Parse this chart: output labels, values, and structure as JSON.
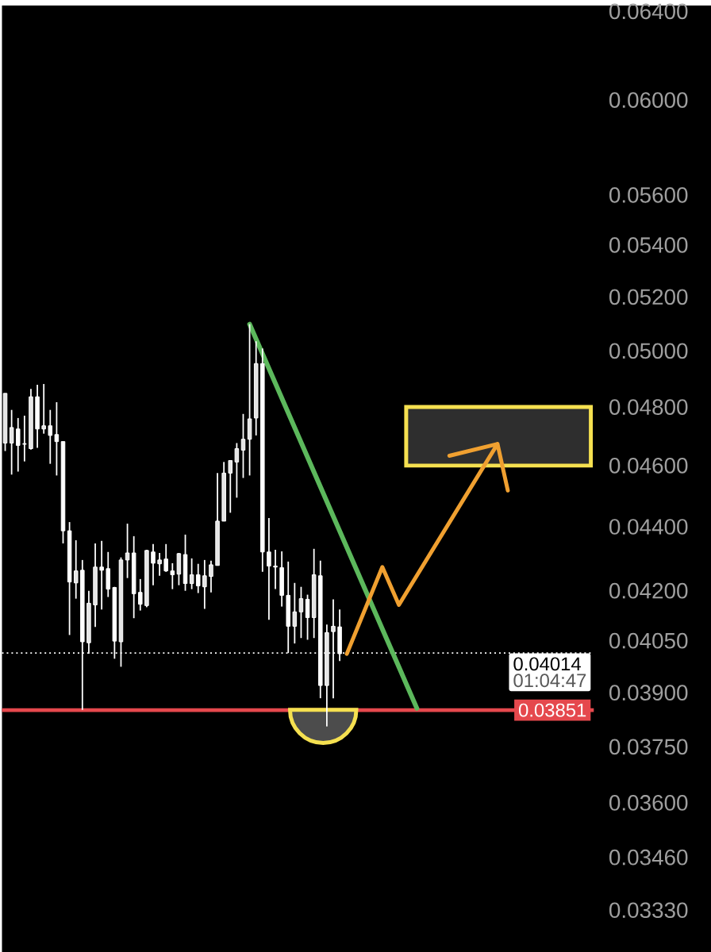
{
  "chart_data": {
    "type": "candlestick",
    "categories": [
      null,
      null,
      null,
      null,
      null,
      null,
      null,
      null,
      null,
      null,
      null,
      null,
      null,
      null,
      null,
      null,
      null,
      null,
      null,
      null,
      null,
      null,
      null,
      null,
      null,
      null,
      null,
      null,
      null,
      null,
      null,
      null,
      null,
      null,
      null,
      null,
      null,
      null,
      null,
      null,
      null,
      null,
      null,
      null,
      null,
      null,
      null,
      null,
      null,
      null,
      null,
      null,
      null,
      null,
      null,
      null,
      null,
      null,
      null,
      null,
      null,
      null,
      null,
      null,
      null,
      null,
      null,
      null,
      null,
      null,
      null,
      null,
      null,
      null,
      null,
      null,
      null,
      null,
      null,
      null,
      null,
      null,
      null,
      null,
      null,
      null,
      null,
      null,
      null,
      null,
      null,
      null
    ],
    "log": "y",
    "ylim": [
      0.0323,
      0.06428
    ],
    "yticks": [
      {
        "value": 0.064,
        "label": "0.06400"
      },
      {
        "value": 0.06,
        "label": "0.06000"
      },
      {
        "value": 0.056,
        "label": "0.05600"
      },
      {
        "value": 0.054,
        "label": "0.05400"
      },
      {
        "value": 0.052,
        "label": "0.05200"
      },
      {
        "value": 0.05,
        "label": "0.05000"
      },
      {
        "value": 0.048,
        "label": "0.04800"
      },
      {
        "value": 0.046,
        "label": "0.04600"
      },
      {
        "value": 0.044,
        "label": "0.04400"
      },
      {
        "value": 0.042,
        "label": "0.04200"
      },
      {
        "value": 0.0405,
        "label": "0.04050"
      },
      {
        "value": 0.039,
        "label": "0.03900"
      },
      {
        "value": 0.0375,
        "label": "0.03750"
      },
      {
        "value": 0.036,
        "label": "0.03600"
      },
      {
        "value": 0.0346,
        "label": "0.03460"
      },
      {
        "value": 0.0333,
        "label": "0.03330"
      }
    ],
    "series": [
      {
        "type": "line",
        "color": "#5cb85c",
        "values": [
          null,
          null,
          null,
          null,
          null,
          null,
          null,
          null,
          null,
          null,
          null,
          null,
          null,
          null,
          null,
          null,
          null,
          null,
          null,
          null,
          null,
          null,
          null,
          null,
          null,
          null,
          null,
          null,
          null,
          null,
          null,
          null,
          null,
          null,
          null,
          null,
          null,
          null,
          0.05098,
          null,
          null,
          null,
          null,
          null,
          null,
          null,
          null,
          null,
          null,
          null,
          null,
          null,
          null,
          null,
          null,
          null,
          null,
          null,
          null,
          null,
          null,
          null,
          null,
          null,
          0.03856,
          null,
          null,
          null,
          null,
          null,
          null,
          null,
          null,
          null,
          null,
          null,
          null,
          null,
          null,
          null,
          null,
          null,
          null,
          null,
          null,
          null,
          null,
          null,
          null,
          null,
          null,
          null
        ]
      },
      {
        "color": "#ffffff",
        "ohlc": [
          [
            0.04676,
            0.04848,
            0.04649,
            0.04848
          ],
          [
            0.04676,
            0.0479,
            0.0457,
            0.04729
          ],
          [
            0.04724,
            0.04762,
            0.0458,
            0.04668
          ],
          [
            0.04673,
            0.0477,
            0.04614,
            0.04673
          ],
          [
            0.04657,
            0.04864,
            0.04654,
            0.04836
          ],
          [
            0.04836,
            0.04878,
            0.0466,
            0.04724
          ],
          [
            0.04724,
            0.04881,
            0.04708,
            0.04735
          ],
          [
            0.04735,
            0.0479,
            0.04606,
            0.04702
          ],
          [
            0.04705,
            0.04817,
            0.04567,
            0.04681
          ],
          [
            0.04681,
            0.04681,
            0.04347,
            0.04387
          ],
          [
            0.04387,
            0.04415,
            0.04067,
            0.04227
          ],
          [
            0.04224,
            0.04357,
            0.04176,
            0.04261
          ],
          [
            0.04263,
            0.04295,
            0.03852,
            0.04047
          ],
          [
            0.04044,
            0.042,
            0.04012,
            0.04162
          ],
          [
            0.04157,
            0.04347,
            0.04091,
            0.04273
          ],
          [
            0.04273,
            0.04355,
            0.04143,
            0.04263
          ],
          [
            0.04268,
            0.0432,
            0.04181,
            0.04205
          ],
          [
            0.0421,
            0.04212,
            0.03998,
            0.04049
          ],
          [
            0.04047,
            0.04303,
            0.03975,
            0.04295
          ],
          [
            0.04295,
            0.0441,
            0.04239,
            0.04317
          ],
          [
            0.04317,
            0.0437,
            0.04117,
            0.04191
          ],
          [
            0.04195,
            0.04236,
            0.0414,
            0.04159
          ],
          [
            0.04155,
            0.04327,
            0.0415,
            0.04325
          ],
          [
            0.0432,
            0.04345,
            0.04217,
            0.04285
          ],
          [
            0.04283,
            0.04317,
            0.04246,
            0.04295
          ],
          [
            0.04298,
            0.04345,
            0.04258,
            0.04261
          ],
          [
            0.04261,
            0.04285,
            0.04205,
            0.04249
          ],
          [
            0.04251,
            0.04317,
            0.04217,
            0.04315
          ],
          [
            0.04312,
            0.04375,
            0.042,
            0.04222
          ],
          [
            0.04222,
            0.043,
            0.04205,
            0.04249
          ],
          [
            0.04249,
            0.04283,
            0.04193,
            0.04215
          ],
          [
            0.04212,
            0.04295,
            0.04145,
            0.04246
          ],
          [
            0.04244,
            0.04293,
            0.04195,
            0.0428
          ],
          [
            0.04278,
            0.04575,
            0.04278,
            0.04418
          ],
          [
            0.04418,
            0.04612,
            0.04418,
            0.04575
          ],
          [
            0.04575,
            0.04617,
            0.04445,
            0.04617
          ],
          [
            0.04612,
            0.04676,
            0.04494,
            0.04657
          ],
          [
            0.04652,
            0.04776,
            0.04559,
            0.04689
          ],
          [
            0.04689,
            0.05098,
            0.04567,
            0.04759
          ],
          [
            0.04762,
            0.05035,
            0.04702,
            0.04954
          ],
          [
            0.04954,
            0.05009,
            0.04258,
            0.0432
          ],
          [
            0.0432,
            0.04428,
            0.04112,
            0.04276
          ],
          [
            0.04276,
            0.04327,
            0.04205,
            0.04273
          ],
          [
            0.04271,
            0.04322,
            0.04152,
            0.04186
          ],
          [
            0.04186,
            0.0429,
            0.04014,
            0.04093
          ],
          [
            0.04093,
            0.04224,
            0.04042,
            0.04136
          ],
          [
            0.04136,
            0.04212,
            0.04058,
            0.04176
          ],
          [
            0.04174,
            0.04188,
            0.04053,
            0.04119
          ],
          [
            0.04119,
            0.0433,
            0.04058,
            0.04249
          ],
          [
            0.04246,
            0.04293,
            0.03885,
            0.03921
          ],
          [
            0.03921,
            0.04098,
            0.03806,
            0.04074
          ],
          [
            0.04077,
            0.04174,
            0.03885,
            0.04093
          ],
          [
            0.04091,
            0.04143,
            0.03991,
            0.04012
          ],
          null,
          null,
          null,
          null,
          null,
          null,
          null,
          null,
          null,
          null,
          null,
          null,
          null,
          null,
          null,
          null,
          null,
          null,
          null,
          null,
          null,
          null,
          null,
          null,
          null,
          null,
          null,
          null,
          null,
          null,
          null,
          null,
          null,
          null,
          null,
          null,
          null,
          null,
          null
        ]
      }
    ],
    "ref_lines": [
      {
        "axis": "y",
        "value": 0.04014,
        "label": "0.04014",
        "color": "#ffffff",
        "line_style": "dotted"
      },
      {
        "axis": "y",
        "value": 0.03851,
        "label": "0.03851",
        "color": "#e5484d",
        "line_style": "solid"
      }
    ],
    "bands": [
      {
        "axis": "y",
        "from": 0.046,
        "to": 0.048,
        "color": "#f5e050"
      }
    ],
    "annotations": [
      "01:04:47"
    ]
  }
}
